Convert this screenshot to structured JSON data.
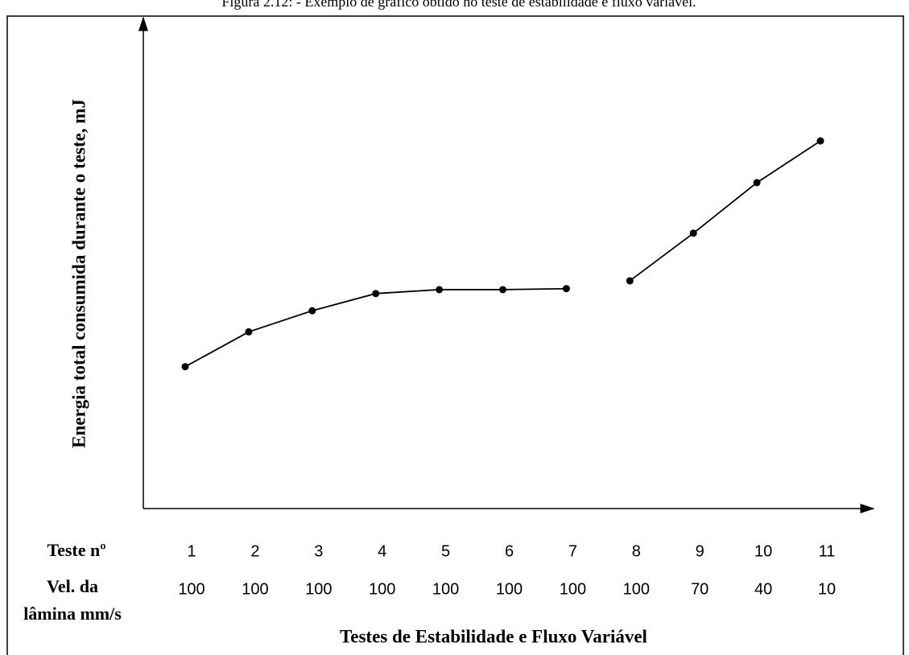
{
  "chart_data": {
    "type": "line",
    "title": "Figura 2.12: - Exemplo de gráfico obtido no teste de estabilidade e fluxo variável.",
    "ylabel": "Energia total consumida durante o teste, mJ",
    "xlabel": "Testes de Estabilidade e Fluxo Variável",
    "row_labels": {
      "test": "Teste nº",
      "speed": [
        "Vel. da",
        "lâmina mm/s"
      ]
    },
    "categories": [
      "1",
      "2",
      "3",
      "4",
      "5",
      "6",
      "7",
      "8",
      "9",
      "10",
      "11"
    ],
    "speeds": [
      100,
      100,
      100,
      100,
      100,
      100,
      100,
      100,
      70,
      40,
      10
    ],
    "ylim": [
      0,
      100
    ],
    "series": [
      {
        "color": "#000000",
        "values": [
          28.9,
          36.0,
          40.3,
          43.8,
          44.6,
          44.6,
          44.8,
          null,
          null,
          null,
          null
        ]
      },
      {
        "color": "#000000",
        "values": [
          null,
          null,
          null,
          null,
          null,
          null,
          null,
          46.4,
          56.1,
          66.4,
          74.9
        ]
      }
    ]
  }
}
